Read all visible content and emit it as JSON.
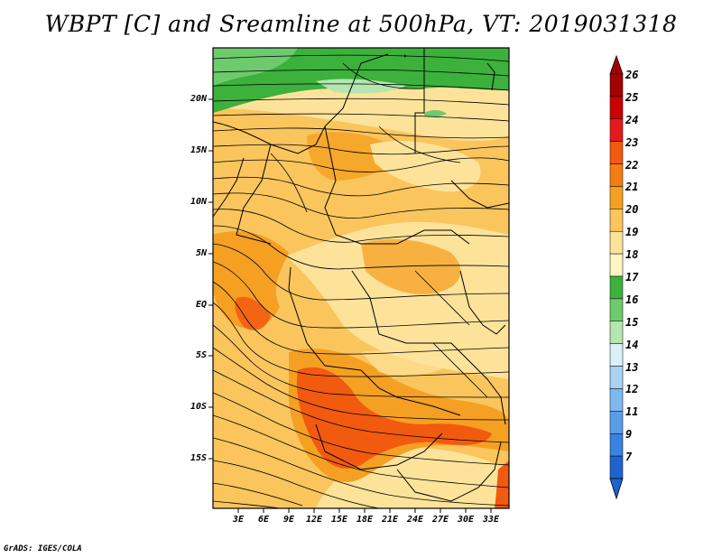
{
  "title": "WBPT [C] and Sreamline at 500hPa, VT: 2019031318",
  "footer": "GrADS: IGES/COLA",
  "map": {
    "lat_labels": [
      "20N",
      "15N",
      "10N",
      "5N",
      "EQ",
      "5S",
      "10S",
      "15S"
    ],
    "lon_labels": [
      "3E",
      "6E",
      "9E",
      "12E",
      "15E",
      "18E",
      "21E",
      "24E",
      "27E",
      "30E",
      "33E"
    ]
  },
  "colorbar": {
    "labels": [
      "26",
      "25",
      "24",
      "23",
      "22",
      "21",
      "20",
      "19",
      "18",
      "17",
      "16",
      "15",
      "14",
      "13",
      "12",
      "11",
      "9",
      "7"
    ],
    "colors": [
      "#a50000",
      "#c80000",
      "#e41a1c",
      "#f25a0f",
      "#f47d12",
      "#f5a022",
      "#fac55c",
      "#fde39a",
      "#fff5c0",
      "#3cb13c",
      "#6dcb6d",
      "#b5e6b0",
      "#dcf0fa",
      "#aad2f3",
      "#7eb8ee",
      "#5a9de8",
      "#3a82df",
      "#1e63d0"
    ]
  },
  "colors": {
    "orange": "#f5a022",
    "light_orange": "#fac55c",
    "dark_orange": "#f25a0f",
    "yellow": "#fde39a",
    "green": "#3cb13c",
    "light_green": "#6dcb6d"
  }
}
